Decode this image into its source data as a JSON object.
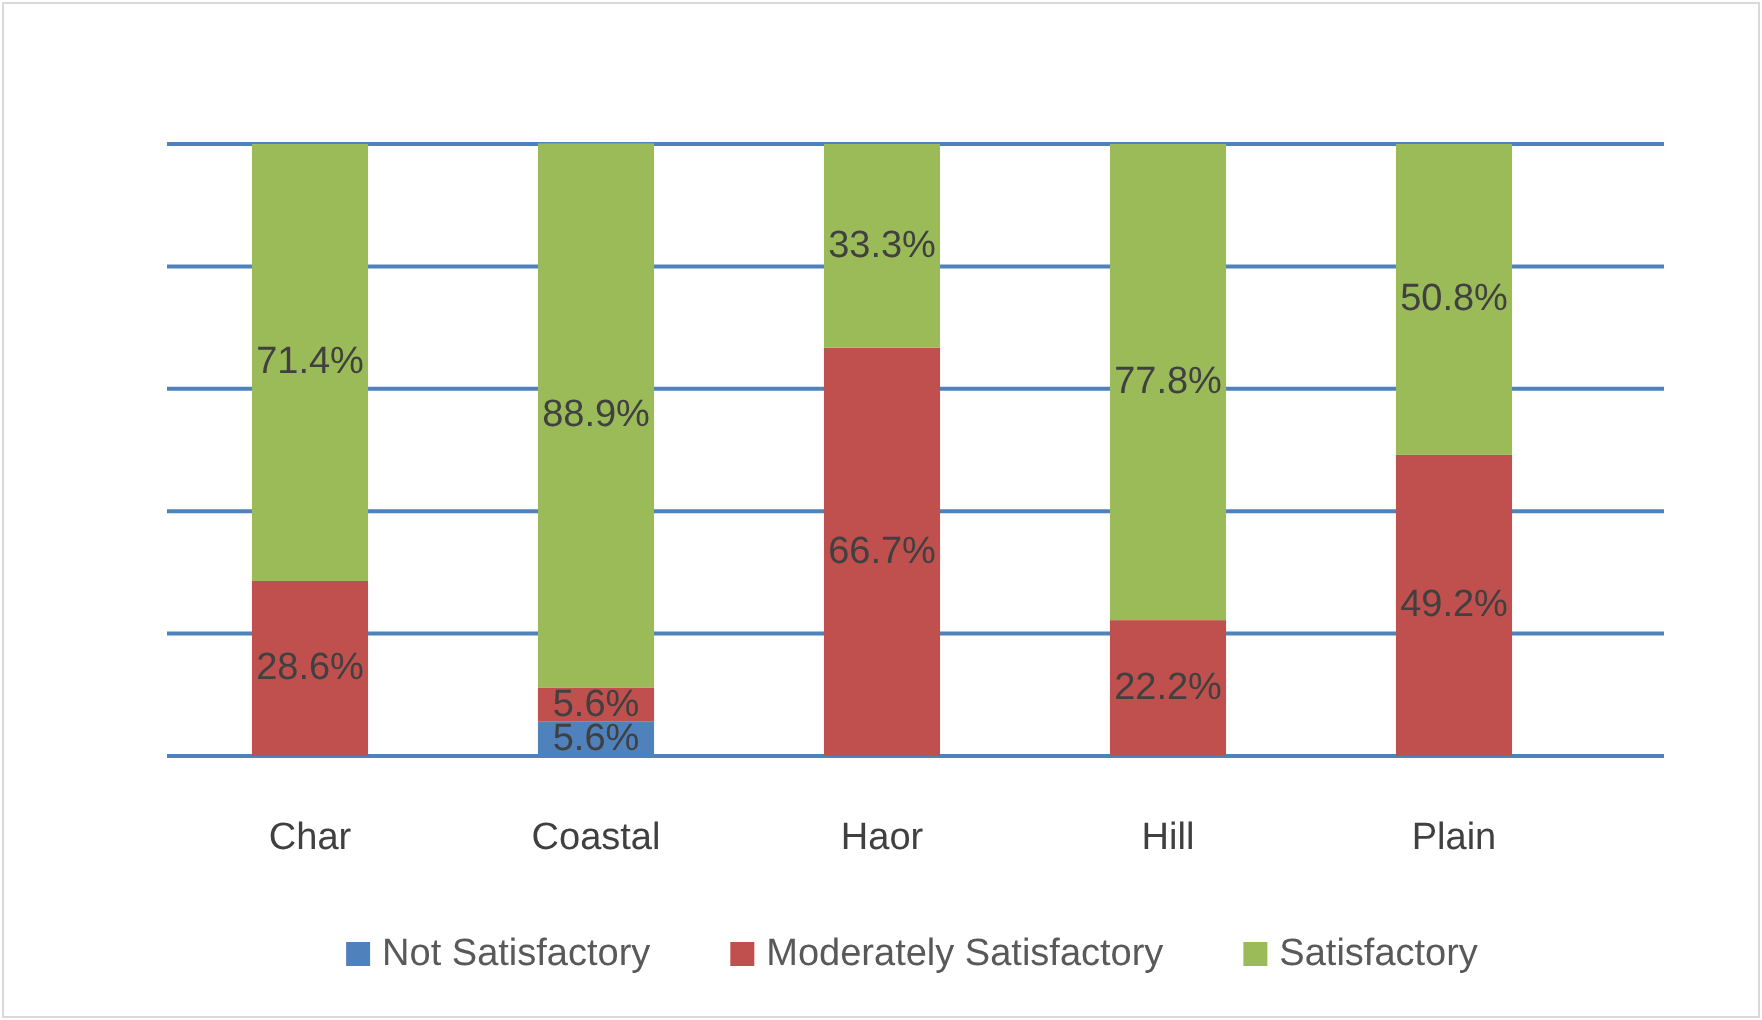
{
  "chart_data": {
    "type": "bar",
    "stacked": true,
    "categories": [
      "Char",
      "Coastal",
      "Haor",
      "Hill",
      "Plain"
    ],
    "series": [
      {
        "name": "Not Satisfactory",
        "color": "#4f81bd",
        "values": [
          null,
          5.6,
          null,
          null,
          null
        ],
        "value_labels": [
          null,
          "5.6%",
          null,
          null,
          null
        ]
      },
      {
        "name": "Moderately Satisfactory",
        "color": "#c0504d",
        "values": [
          28.6,
          5.6,
          66.7,
          22.2,
          49.2
        ],
        "value_labels": [
          "28.6%",
          "5.6%",
          "66.7%",
          "22.2%",
          "49.2%"
        ]
      },
      {
        "name": "Satisfactory",
        "color": "#9bbb59",
        "values": [
          71.4,
          88.9,
          33.3,
          77.8,
          50.8
        ],
        "value_labels": [
          "71.4%",
          "88.9%",
          "33.3%",
          "77.8%",
          "50.8%"
        ]
      }
    ],
    "ylim": [
      0,
      100
    ],
    "yticks": [
      {
        "value": 0,
        "label": null
      },
      {
        "value": 20,
        "label": null
      },
      {
        "value": 40,
        "label": null
      },
      {
        "value": 60,
        "label": null
      },
      {
        "value": 80,
        "label": null
      },
      {
        "value": 100,
        "label": null
      }
    ],
    "grid": "y",
    "tick_labels": "x",
    "legend": "bottom"
  }
}
